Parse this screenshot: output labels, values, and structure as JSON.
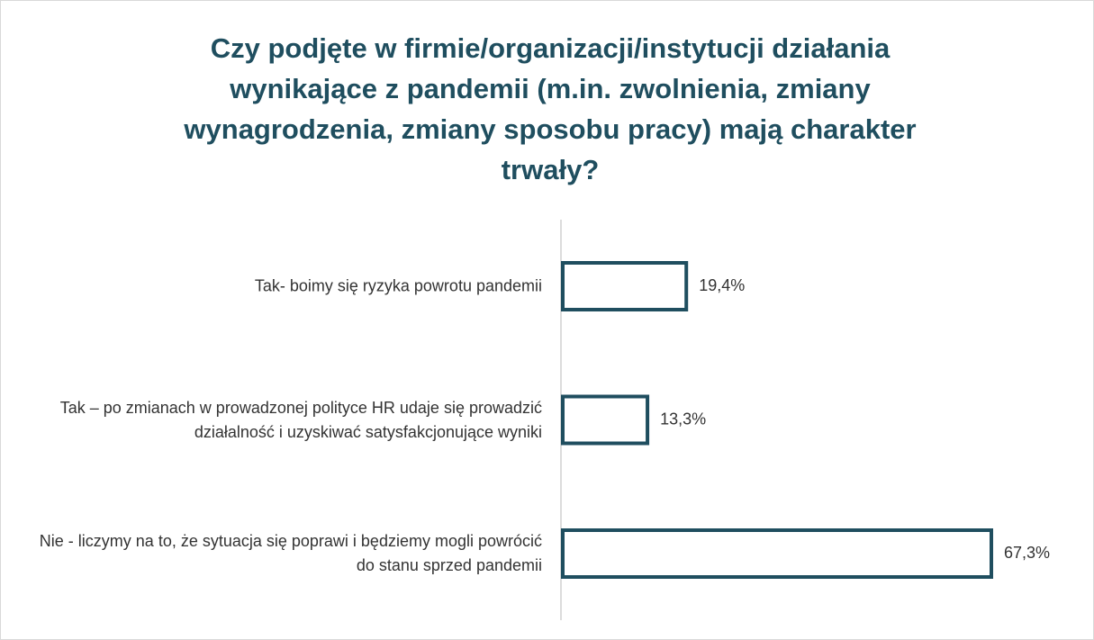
{
  "chart_data": {
    "type": "bar",
    "orientation": "horizontal",
    "title": "Czy podjęte w firmie/organizacji/instytucji działania wynikające z pandemii (m.in. zwolnienia, zmiany wynagrodzenia, zmiany sposobu pracy) mają charakter trwały?",
    "categories": [
      "Tak- boimy się ryzyka powrotu pandemii",
      "Tak – po zmianach w prowadzonej polityce HR udaje się prowadzić działalność i uzyskiwać satysfakcjonujące wyniki",
      "Nie - liczymy na to, że sytuacja się poprawi i będziemy mogli powrócić do stanu sprzed pandemii"
    ],
    "values": [
      19.4,
      13.3,
      67.3
    ],
    "value_labels": [
      "19,4%",
      "13,3%",
      "67,3%"
    ],
    "color": "#1f4e5f"
  }
}
